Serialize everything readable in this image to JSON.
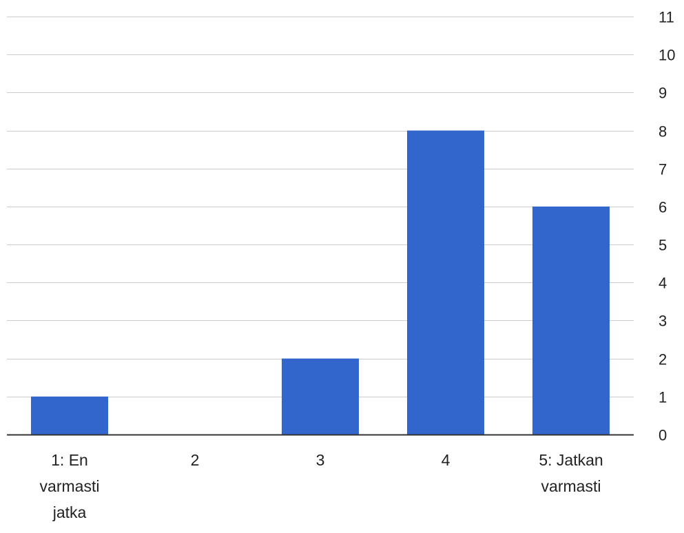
{
  "chart_data": {
    "type": "bar",
    "categories": [
      [
        "1: En",
        "varmasti",
        "jatka"
      ],
      [
        "2"
      ],
      [
        "3"
      ],
      [
        "4"
      ],
      [
        "5: Jatkan",
        "varmasti"
      ]
    ],
    "values": [
      1,
      0,
      2,
      8,
      6
    ],
    "ylim": [
      0,
      11
    ],
    "yticks": [
      0,
      1,
      2,
      3,
      4,
      5,
      6,
      7,
      8,
      9,
      10,
      11
    ],
    "y_axis_side": "right",
    "grid": true,
    "legend": "none",
    "colors": {
      "bar": "#3366cc",
      "grid": "#cccccc",
      "axis": "#333333",
      "text": "#222222"
    }
  }
}
